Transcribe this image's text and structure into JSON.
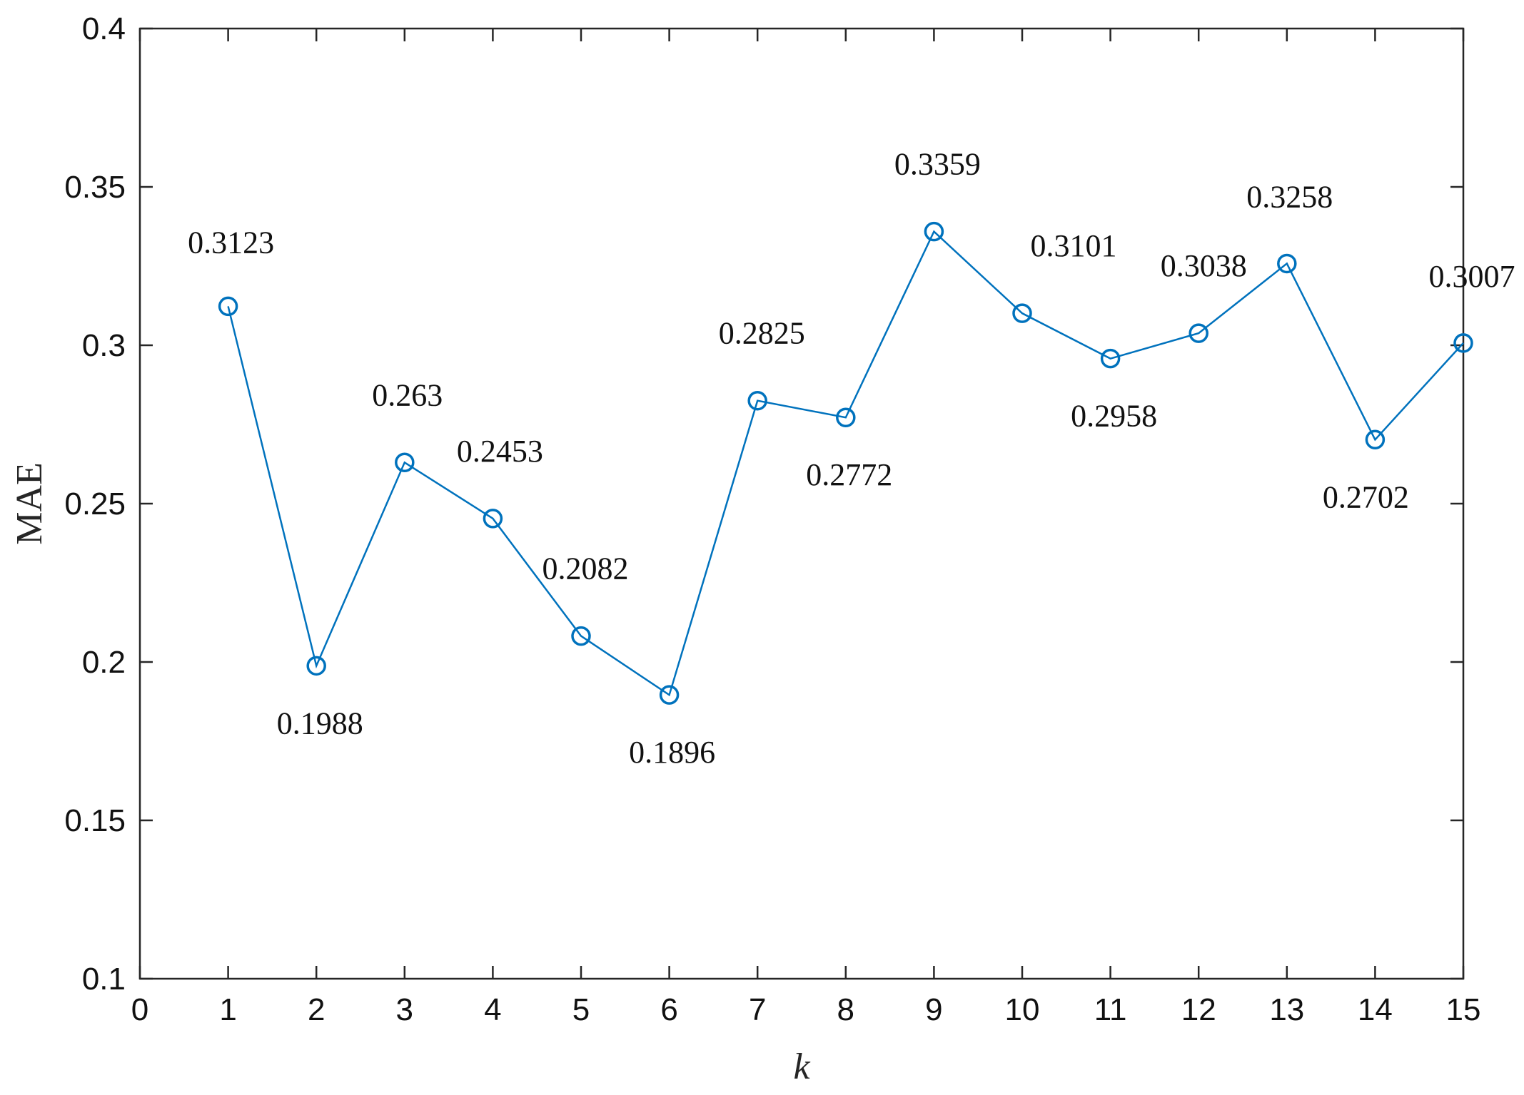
{
  "chart_data": {
    "type": "line",
    "xlabel": "k",
    "ylabel": "MAE",
    "xlim": [
      0,
      15
    ],
    "ylim": [
      0.1,
      0.4
    ],
    "x_ticks": [
      "0",
      "1",
      "2",
      "3",
      "4",
      "5",
      "6",
      "7",
      "8",
      "9",
      "10",
      "11",
      "12",
      "13",
      "14",
      "15"
    ],
    "y_ticks": [
      "0.1",
      "0.15",
      "0.2",
      "0.25",
      "0.3",
      "0.35",
      "0.4"
    ],
    "grid": false,
    "marker": "circle",
    "series_color": "#0072BD",
    "series": [
      {
        "x": [
          1,
          2,
          3,
          4,
          5,
          6,
          7,
          8,
          9,
          10,
          11,
          12,
          13,
          14,
          15
        ],
        "values": [
          0.3123,
          0.1988,
          0.263,
          0.2453,
          0.2082,
          0.1896,
          0.2825,
          0.2772,
          0.3359,
          0.3101,
          0.2958,
          0.3038,
          0.3258,
          0.2702,
          0.3007
        ],
        "labels": [
          "0.3123",
          "0.1988",
          "0.263",
          "0.2453",
          "0.2082",
          "0.1896",
          "0.2825",
          "0.2772",
          "0.3359",
          "0.3101",
          "0.2958",
          "0.3038",
          "0.3258",
          "0.2702",
          "0.3007"
        ]
      }
    ]
  }
}
